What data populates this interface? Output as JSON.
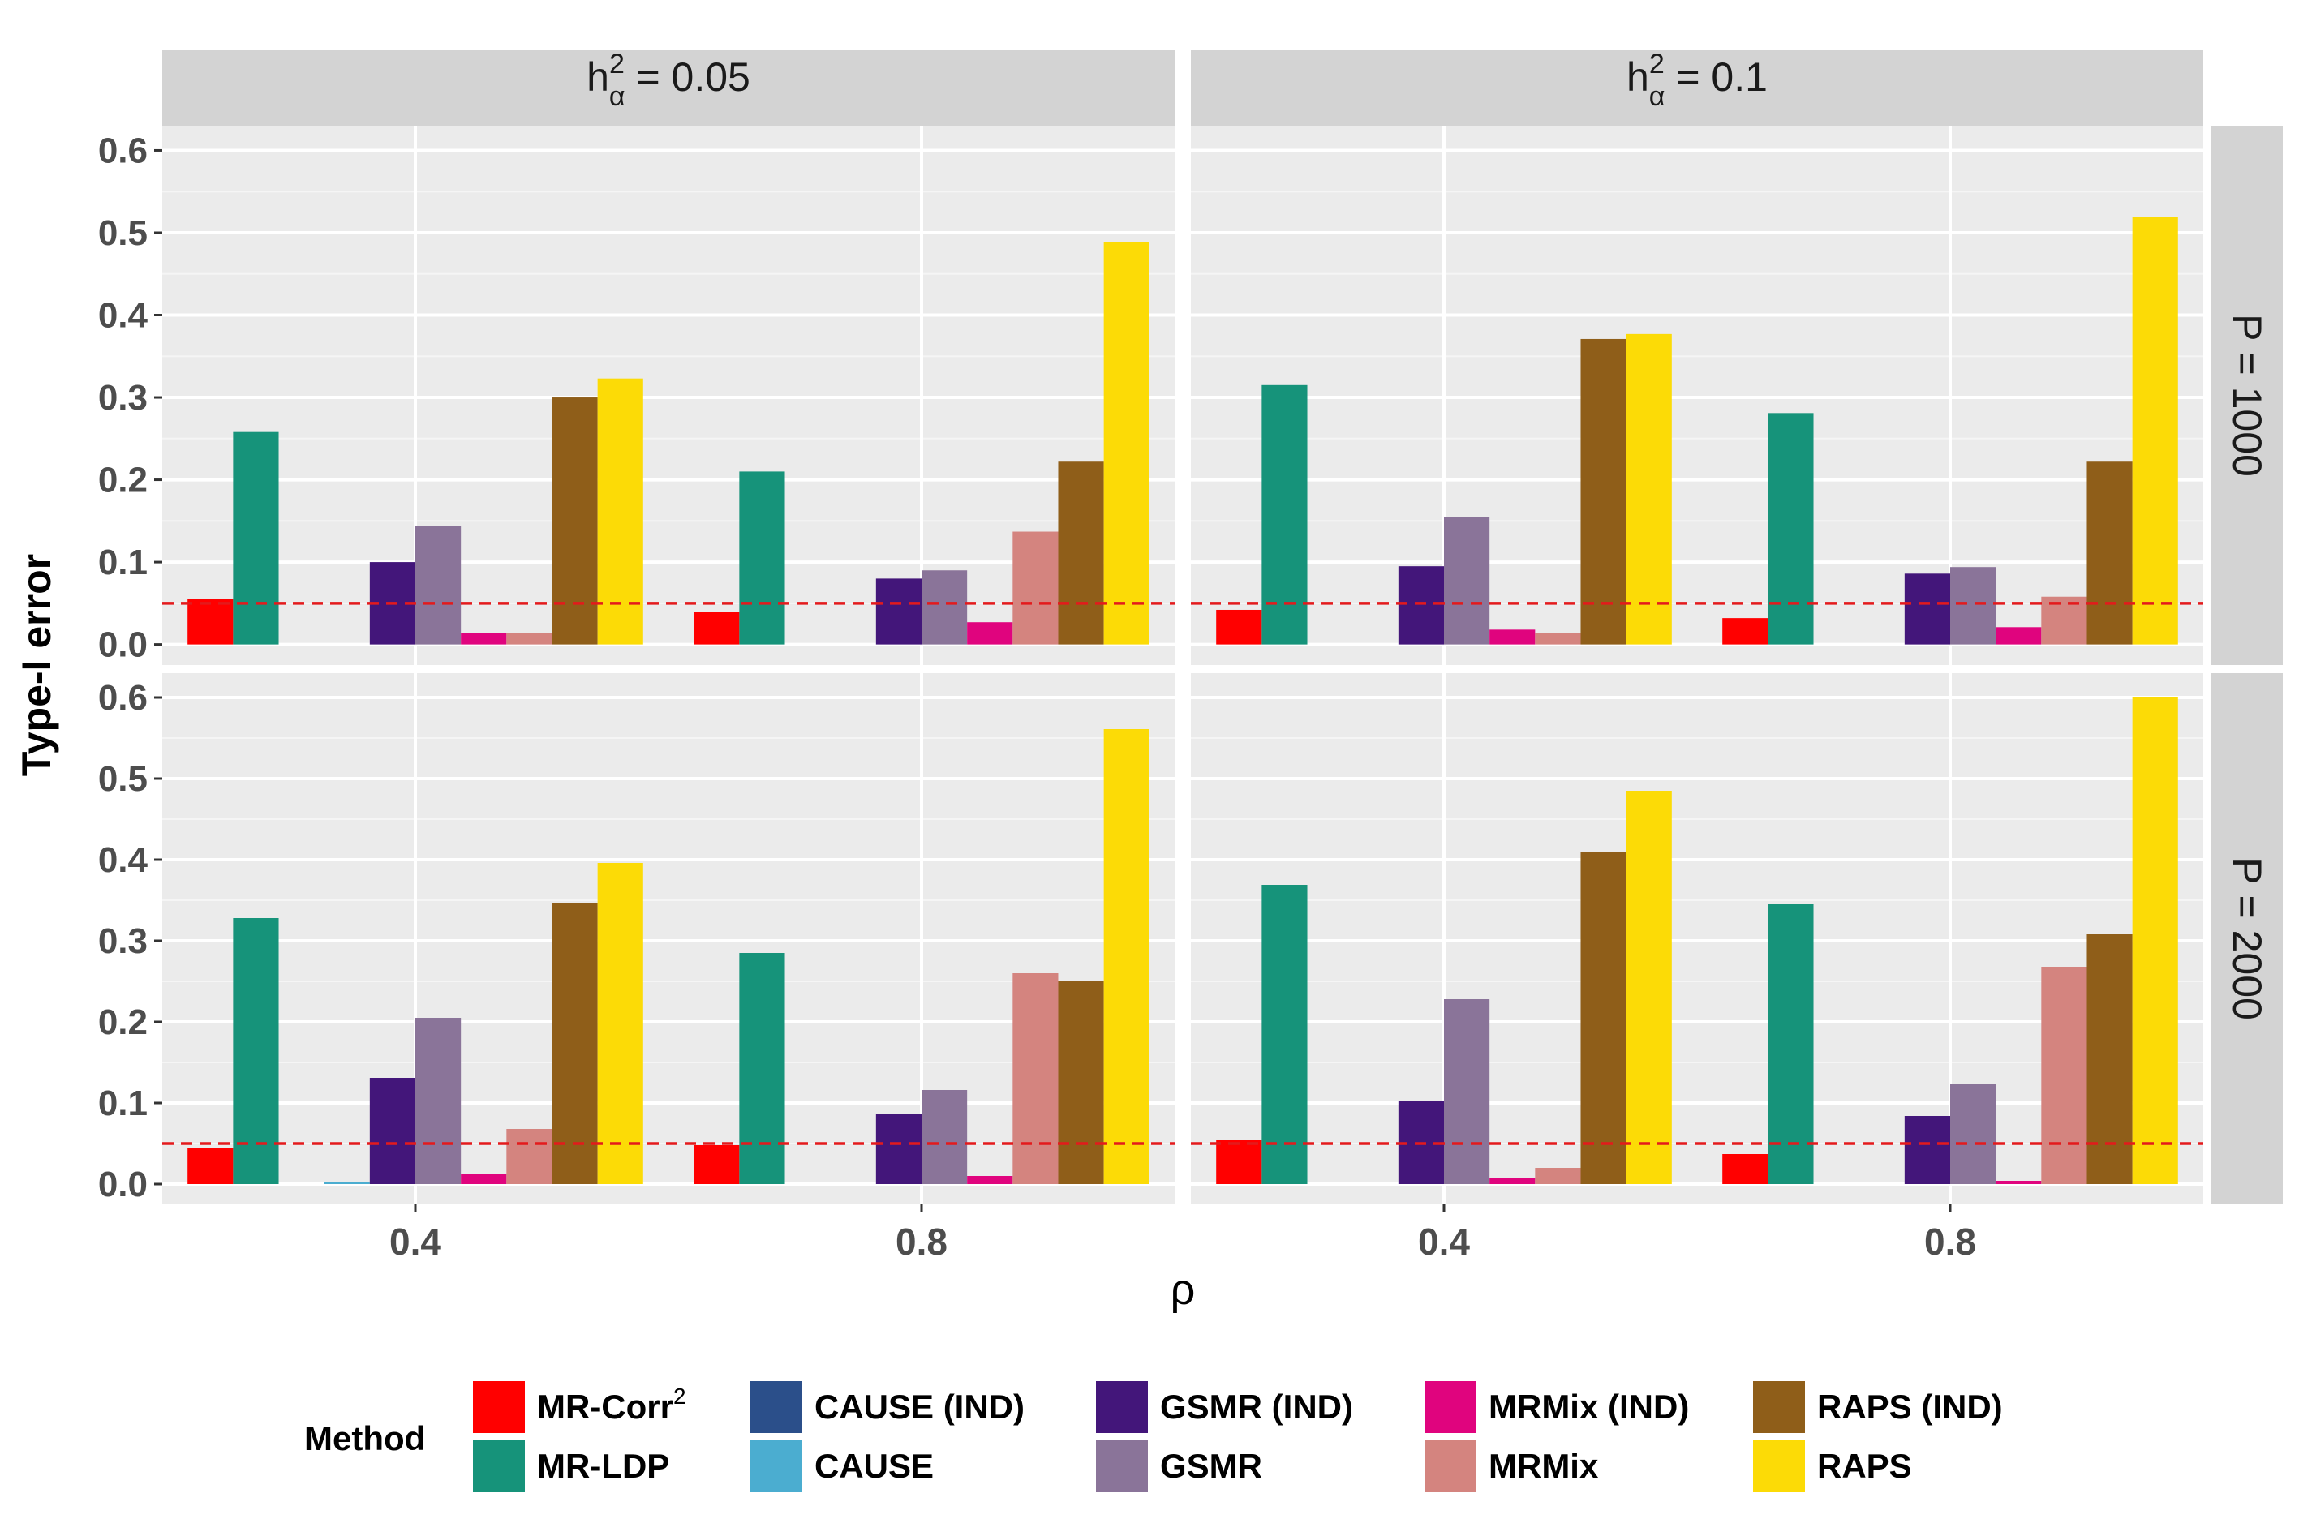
{
  "chart_data": {
    "type": "bar",
    "ylabel": "Type-I error",
    "xlabel": "ρ",
    "ylim": [
      -0.025,
      0.63
    ],
    "yticks": [
      0.0,
      0.1,
      0.2,
      0.3,
      0.4,
      0.5,
      0.6
    ],
    "ytick_labels": [
      "0.0",
      "0.1",
      "0.2",
      "0.3",
      "0.4",
      "0.5",
      "0.6"
    ],
    "categories": [
      "0.4",
      "0.8"
    ],
    "reference_line": {
      "y": 0.05,
      "color": "#e41a1c",
      "style": "dashed"
    },
    "col_facets": [
      {
        "prefix": "h",
        "sup": "2",
        "sub": "α",
        "value": " = 0.05"
      },
      {
        "prefix": "h",
        "sup": "2",
        "sub": "α",
        "value": " = 0.1"
      }
    ],
    "row_facets": [
      "P = 1000",
      "P = 2000"
    ],
    "legend": {
      "title": "Method",
      "position": "bottom",
      "items": [
        {
          "label": "MR-Corr",
          "sup": "2",
          "color": "#ff0000"
        },
        {
          "label": "MR-LDP",
          "sup": "",
          "color": "#16937a"
        },
        {
          "label": "CAUSE (IND)",
          "sup": "",
          "color": "#2b4f8a"
        },
        {
          "label": "CAUSE",
          "sup": "",
          "color": "#4badd0"
        },
        {
          "label": "GSMR (IND)",
          "sup": "",
          "color": "#43167a"
        },
        {
          "label": "GSMR",
          "sup": "",
          "color": "#8a7499"
        },
        {
          "label": "MRMix (IND)",
          "sup": "",
          "color": "#e0047e"
        },
        {
          "label": "MRMix",
          "sup": "",
          "color": "#d4847f"
        },
        {
          "label": "RAPS (IND)",
          "sup": "",
          "color": "#8f5e19"
        },
        {
          "label": "RAPS",
          "sup": "",
          "color": "#fcdb06"
        }
      ]
    },
    "panels": [
      {
        "row": 0,
        "col": 0,
        "values": {
          "0.4": [
            0.055,
            0.258,
            0,
            0,
            0.1,
            0.144,
            0.014,
            0.014,
            0.3,
            0.323
          ],
          "0.8": [
            0.04,
            0.21,
            0,
            0,
            0.08,
            0.09,
            0.027,
            0.137,
            0.222,
            0.489
          ]
        }
      },
      {
        "row": 0,
        "col": 1,
        "values": {
          "0.4": [
            0.042,
            0.315,
            0,
            0,
            0.095,
            0.155,
            0.018,
            0.014,
            0.371,
            0.377
          ],
          "0.8": [
            0.032,
            0.281,
            0,
            0,
            0.086,
            0.094,
            0.021,
            0.058,
            0.222,
            0.519
          ]
        }
      },
      {
        "row": 1,
        "col": 0,
        "values": {
          "0.4": [
            0.045,
            0.328,
            0,
            0.002,
            0.131,
            0.205,
            0.013,
            0.068,
            0.346,
            0.396
          ],
          "0.8": [
            0.048,
            0.285,
            0,
            0,
            0.086,
            0.116,
            0.01,
            0.26,
            0.251,
            0.561
          ]
        }
      },
      {
        "row": 1,
        "col": 1,
        "values": {
          "0.4": [
            0.054,
            0.369,
            0,
            0,
            0.103,
            0.228,
            0.008,
            0.02,
            0.409,
            0.485
          ],
          "0.8": [
            0.037,
            0.345,
            0,
            0,
            0.084,
            0.124,
            0.004,
            0.268,
            0.308,
            0.6
          ]
        }
      }
    ]
  }
}
